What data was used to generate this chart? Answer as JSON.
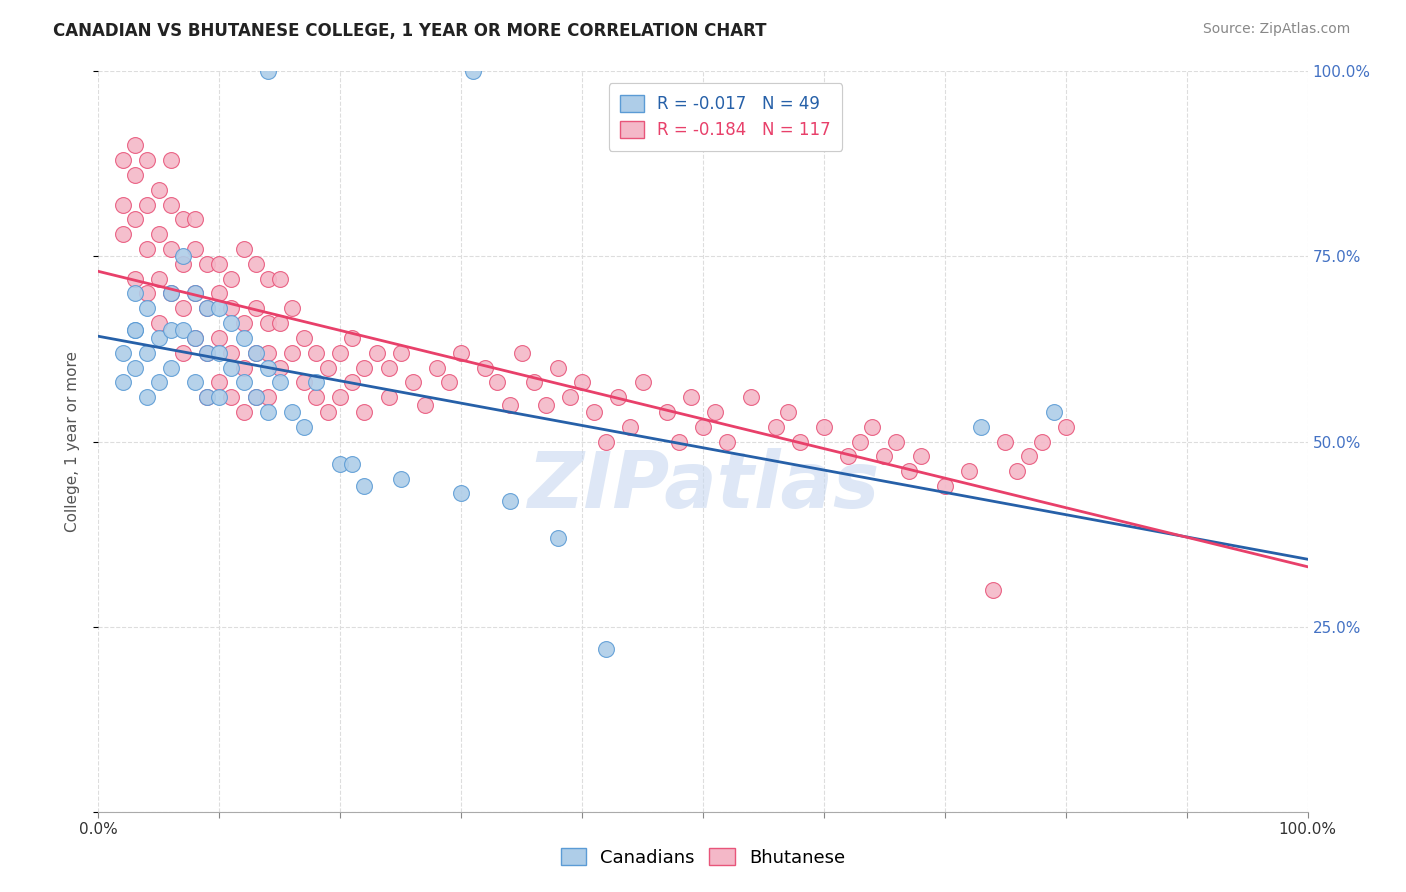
{
  "title": "CANADIAN VS BHUTANESE COLLEGE, 1 YEAR OR MORE CORRELATION CHART",
  "source": "Source: ZipAtlas.com",
  "ylabel": "College, 1 year or more",
  "ytick_values": [
    0.0,
    0.25,
    0.5,
    0.75,
    1.0
  ],
  "ytick_labels": [
    "",
    "25.0%",
    "50.0%",
    "75.0%",
    "100.0%"
  ],
  "legend_r_canadian": "-0.017",
  "legend_n_canadian": "49",
  "legend_r_bhutanese": "-0.184",
  "legend_n_bhutanese": "117",
  "legend_label_canadian": "Canadians",
  "legend_label_bhutanese": "Bhutanese",
  "canadian_color": "#aecde8",
  "bhutanese_color": "#f4b8c8",
  "canadian_edge_color": "#5b9bd5",
  "bhutanese_edge_color": "#e8557a",
  "canadian_line_color": "#2660a8",
  "bhutanese_line_color": "#e8406a",
  "canadian_x": [
    0.14,
    0.31,
    0.02,
    0.02,
    0.03,
    0.03,
    0.03,
    0.03,
    0.04,
    0.04,
    0.04,
    0.05,
    0.05,
    0.06,
    0.06,
    0.06,
    0.07,
    0.07,
    0.08,
    0.08,
    0.08,
    0.09,
    0.09,
    0.09,
    0.1,
    0.1,
    0.1,
    0.11,
    0.11,
    0.12,
    0.12,
    0.13,
    0.13,
    0.14,
    0.14,
    0.15,
    0.16,
    0.17,
    0.18,
    0.2,
    0.21,
    0.22,
    0.25,
    0.3,
    0.34,
    0.38,
    0.42,
    0.73,
    0.79
  ],
  "canadian_y": [
    1.0,
    1.0,
    0.62,
    0.58,
    0.65,
    0.6,
    0.7,
    0.65,
    0.68,
    0.62,
    0.56,
    0.64,
    0.58,
    0.7,
    0.65,
    0.6,
    0.75,
    0.65,
    0.7,
    0.64,
    0.58,
    0.68,
    0.62,
    0.56,
    0.68,
    0.62,
    0.56,
    0.66,
    0.6,
    0.64,
    0.58,
    0.62,
    0.56,
    0.6,
    0.54,
    0.58,
    0.54,
    0.52,
    0.58,
    0.47,
    0.47,
    0.44,
    0.45,
    0.43,
    0.42,
    0.37,
    0.22,
    0.52,
    0.54
  ],
  "bhutanese_x": [
    0.02,
    0.02,
    0.02,
    0.03,
    0.03,
    0.03,
    0.03,
    0.04,
    0.04,
    0.04,
    0.04,
    0.05,
    0.05,
    0.05,
    0.05,
    0.06,
    0.06,
    0.06,
    0.06,
    0.07,
    0.07,
    0.07,
    0.07,
    0.08,
    0.08,
    0.08,
    0.08,
    0.09,
    0.09,
    0.09,
    0.09,
    0.1,
    0.1,
    0.1,
    0.1,
    0.11,
    0.11,
    0.11,
    0.11,
    0.12,
    0.12,
    0.12,
    0.12,
    0.13,
    0.13,
    0.13,
    0.13,
    0.14,
    0.14,
    0.14,
    0.14,
    0.15,
    0.15,
    0.15,
    0.16,
    0.16,
    0.17,
    0.17,
    0.18,
    0.18,
    0.19,
    0.19,
    0.2,
    0.2,
    0.21,
    0.21,
    0.22,
    0.22,
    0.23,
    0.24,
    0.24,
    0.25,
    0.26,
    0.27,
    0.28,
    0.29,
    0.3,
    0.32,
    0.33,
    0.34,
    0.35,
    0.36,
    0.37,
    0.38,
    0.39,
    0.4,
    0.41,
    0.42,
    0.43,
    0.44,
    0.45,
    0.47,
    0.48,
    0.49,
    0.5,
    0.51,
    0.52,
    0.54,
    0.56,
    0.57,
    0.58,
    0.6,
    0.62,
    0.63,
    0.64,
    0.65,
    0.66,
    0.67,
    0.68,
    0.7,
    0.72,
    0.74,
    0.75,
    0.76,
    0.77,
    0.78,
    0.8
  ],
  "bhutanese_y": [
    0.78,
    0.82,
    0.88,
    0.8,
    0.86,
    0.72,
    0.9,
    0.82,
    0.76,
    0.88,
    0.7,
    0.84,
    0.78,
    0.72,
    0.66,
    0.82,
    0.76,
    0.7,
    0.88,
    0.8,
    0.74,
    0.68,
    0.62,
    0.76,
    0.7,
    0.64,
    0.8,
    0.74,
    0.68,
    0.62,
    0.56,
    0.7,
    0.64,
    0.58,
    0.74,
    0.68,
    0.62,
    0.56,
    0.72,
    0.66,
    0.6,
    0.54,
    0.76,
    0.62,
    0.56,
    0.68,
    0.74,
    0.62,
    0.56,
    0.66,
    0.72,
    0.6,
    0.66,
    0.72,
    0.68,
    0.62,
    0.64,
    0.58,
    0.62,
    0.56,
    0.6,
    0.54,
    0.56,
    0.62,
    0.58,
    0.64,
    0.6,
    0.54,
    0.62,
    0.6,
    0.56,
    0.62,
    0.58,
    0.55,
    0.6,
    0.58,
    0.62,
    0.6,
    0.58,
    0.55,
    0.62,
    0.58,
    0.55,
    0.6,
    0.56,
    0.58,
    0.54,
    0.5,
    0.56,
    0.52,
    0.58,
    0.54,
    0.5,
    0.56,
    0.52,
    0.54,
    0.5,
    0.56,
    0.52,
    0.54,
    0.5,
    0.52,
    0.48,
    0.5,
    0.52,
    0.48,
    0.5,
    0.46,
    0.48,
    0.44,
    0.46,
    0.3,
    0.5,
    0.46,
    0.48,
    0.5,
    0.52
  ],
  "background_color": "#ffffff",
  "grid_color": "#dddddd",
  "watermark_text": "ZIPatlas",
  "watermark_color": "#c8d8f0",
  "title_fontsize": 12,
  "axis_label_fontsize": 11,
  "tick_fontsize": 11,
  "source_fontsize": 10,
  "legend_fontsize": 12
}
